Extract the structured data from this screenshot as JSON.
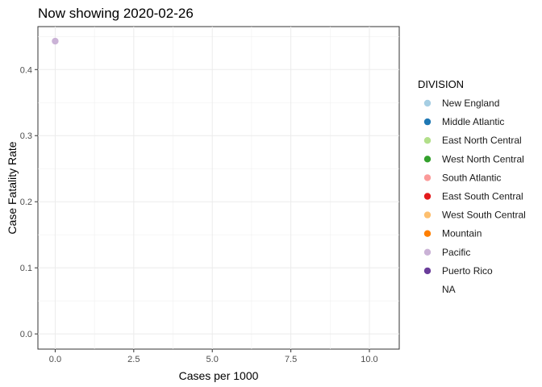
{
  "chart_data": {
    "type": "scatter",
    "title": "Now showing 2020-02-26",
    "xlabel": "Cases per 1000",
    "ylabel": "Case Fatality Rate",
    "xlim": [
      -0.55,
      10.95
    ],
    "ylim": [
      -0.023,
      0.465
    ],
    "x_ticks": [
      0,
      2.5,
      5,
      7.5,
      10
    ],
    "x_tick_labels": [
      "0.0",
      "2.5",
      "5.0",
      "7.5",
      "10.0"
    ],
    "y_ticks": [
      0,
      0.1,
      0.2,
      0.3,
      0.4
    ],
    "y_tick_labels": [
      "0.0",
      "0.1",
      "0.2",
      "0.3",
      "0.4"
    ],
    "grid": true,
    "legend": {
      "title": "DIVISION",
      "placement": "right",
      "entries": [
        {
          "label": "New England",
          "color": "#a6cee3"
        },
        {
          "label": "Middle Atlantic",
          "color": "#1f78b4"
        },
        {
          "label": "East North Central",
          "color": "#b2df8a"
        },
        {
          "label": "West North Central",
          "color": "#33a02c"
        },
        {
          "label": "South Atlantic",
          "color": "#fb9a99"
        },
        {
          "label": "East South Central",
          "color": "#e31a1c"
        },
        {
          "label": "West South Central",
          "color": "#fdbf6f"
        },
        {
          "label": "Mountain",
          "color": "#ff7f00"
        },
        {
          "label": "Pacific",
          "color": "#cab2d6"
        },
        {
          "label": "Puerto Rico",
          "color": "#6a3d9a"
        },
        {
          "label": "NA",
          "color": ""
        }
      ]
    },
    "series": [
      {
        "division": "Pacific",
        "color": "#cab2d6",
        "points": [
          {
            "x": 0.0,
            "y": 0.443
          }
        ]
      }
    ]
  }
}
